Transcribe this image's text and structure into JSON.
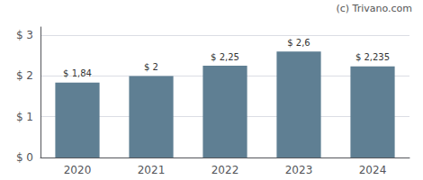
{
  "chart_data": {
    "type": "bar",
    "categories": [
      "2020",
      "2021",
      "2022",
      "2023",
      "2024"
    ],
    "values": [
      1.84,
      2.0,
      2.25,
      2.6,
      2.235
    ],
    "value_labels": [
      "$ 1,84",
      "$ 2",
      "$ 2,25",
      "$ 2,6",
      "$ 2,235"
    ],
    "color": "#5f7f93",
    "ylim": [
      0,
      3.2
    ],
    "yticks": [
      {
        "value": 0,
        "label": "$ 0"
      },
      {
        "value": 1,
        "label": "$ 1"
      },
      {
        "value": 2,
        "label": "$ 2"
      },
      {
        "value": 3,
        "label": "$ 3"
      }
    ],
    "grid": true,
    "data_labels": true,
    "annotations": [
      "(c) Trivano.com"
    ]
  }
}
